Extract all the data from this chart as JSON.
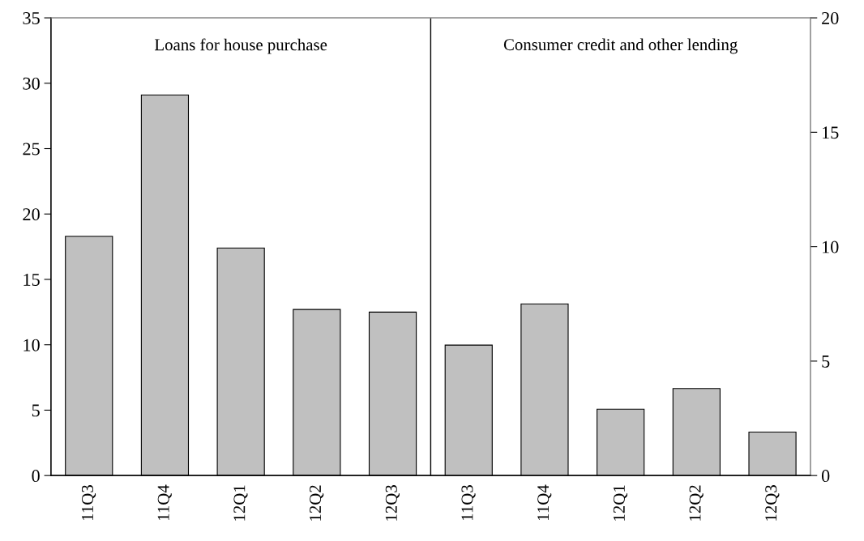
{
  "chart_data": {
    "type": "bar",
    "categories": [
      "11Q3",
      "11Q4",
      "12Q1",
      "12Q2",
      "12Q3",
      "11Q3",
      "11Q4",
      "12Q1",
      "12Q2",
      "12Q3"
    ],
    "series": [
      {
        "color": "#c0c0c0",
        "values": [
          18.3,
          29.1,
          17.4,
          12.7,
          12.5,
          null,
          null,
          null,
          null,
          null
        ]
      },
      {
        "color": "#c0c0c0",
        "axis": "y2",
        "values": [
          null,
          null,
          null,
          null,
          null,
          5.7,
          7.5,
          2.9,
          3.8,
          1.9
        ]
      }
    ],
    "ylim": [
      0,
      35
    ],
    "yticks": [
      0,
      5,
      10,
      15,
      20,
      25,
      30,
      35
    ],
    "y2lim": [
      0,
      20
    ],
    "y2ticks": [
      0,
      5,
      10,
      15,
      20
    ],
    "annotations": [
      "Loans for house purchase",
      "Consumer credit and other lending"
    ],
    "grid": false,
    "legend": false
  }
}
